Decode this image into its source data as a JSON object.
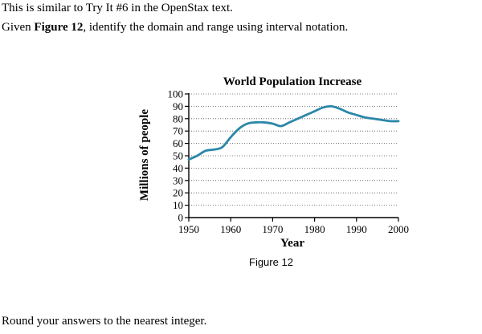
{
  "question": {
    "line1": "This is similar to Try It #6 in the OpenStax text.",
    "line2_pre": "Given ",
    "line2_bold": "Figure 12",
    "line2_post": ", identify the domain and range using interval notation.",
    "footer": "Round your answers to the nearest integer."
  },
  "caption": "Figure 12",
  "colors": {
    "curve": "#2b87a8",
    "grid": "#555555",
    "axis": "#000000"
  },
  "chart_data": {
    "type": "line",
    "title": "World Population Increase",
    "xlabel": "Year",
    "ylabel": "Millions of people",
    "xlim": [
      1950,
      2000
    ],
    "ylim": [
      0,
      100
    ],
    "x_ticks": [
      1950,
      1960,
      1970,
      1980,
      1990,
      2000
    ],
    "y_ticks": [
      0,
      10,
      20,
      30,
      40,
      50,
      60,
      70,
      80,
      90,
      100
    ],
    "grid": true,
    "series": [
      {
        "name": "World Population Increase",
        "x": [
          1950,
          1952,
          1954,
          1956,
          1958,
          1960,
          1962,
          1964,
          1966,
          1968,
          1970,
          1972,
          1974,
          1976,
          1978,
          1980,
          1982,
          1984,
          1986,
          1988,
          1990,
          1992,
          1994,
          1996,
          1998,
          2000
        ],
        "values": [
          47,
          50,
          54,
          55,
          57,
          65,
          72,
          76,
          77,
          77,
          76,
          74,
          77,
          80,
          83,
          86,
          89,
          90,
          88,
          85,
          83,
          81,
          80,
          79,
          78,
          78
        ]
      }
    ]
  }
}
